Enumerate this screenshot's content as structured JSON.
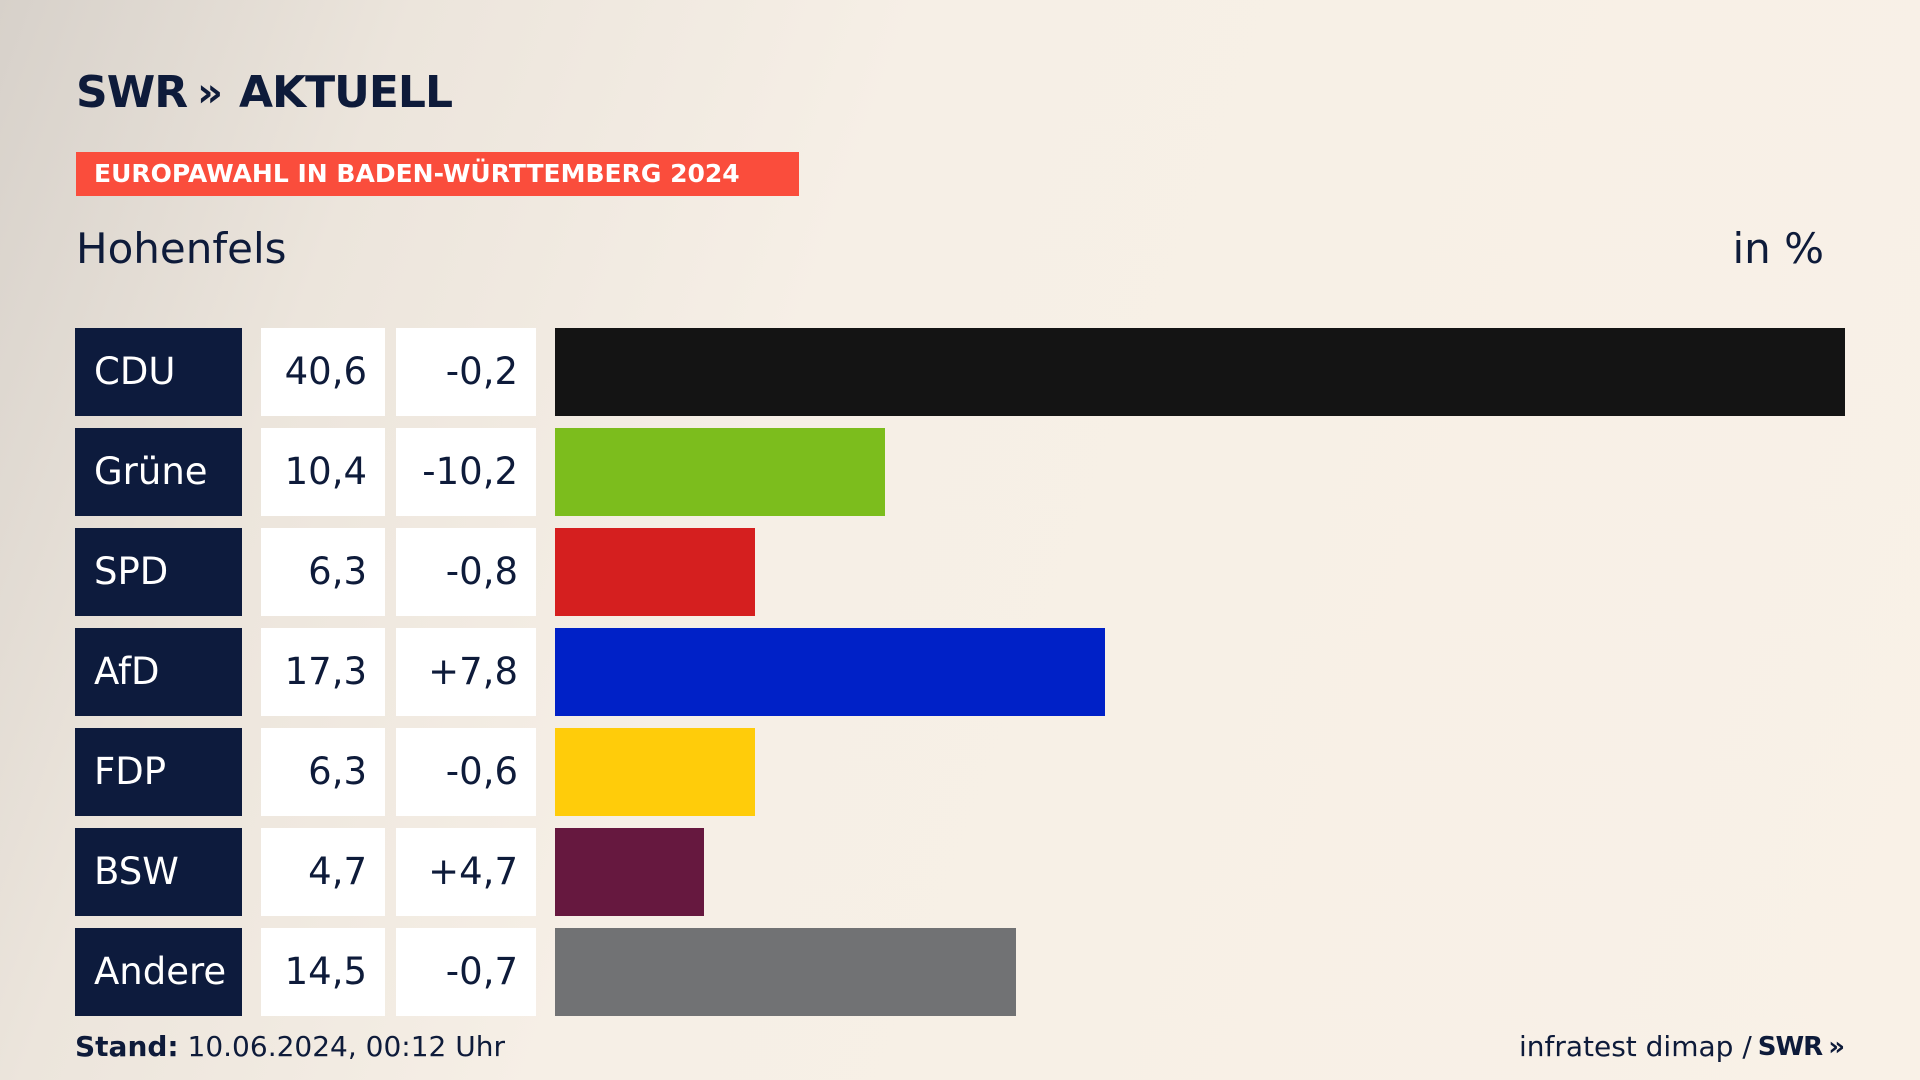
{
  "header": {
    "logo_text": "SWR",
    "logo_chevrons": "»",
    "logo_suffix": "AKTUELL",
    "banner": "EUROPAWAHL IN BADEN-WÜRTTEMBERG 2024",
    "region": "Hohenfels",
    "unit": "in %"
  },
  "chart_data": {
    "type": "bar",
    "orientation": "horizontal",
    "title": "",
    "xlim": [
      0,
      40.6
    ],
    "categories": [
      "CDU",
      "Grüne",
      "SPD",
      "AfD",
      "FDP",
      "BSW",
      "Andere"
    ],
    "values": [
      40.6,
      10.4,
      6.3,
      17.3,
      6.3,
      4.7,
      14.5
    ],
    "value_labels": [
      "40,6",
      "10,4",
      "6,3",
      "17,3",
      "6,3",
      "4,7",
      "14,5"
    ],
    "changes": [
      "-0,2",
      "-10,2",
      "-0,8",
      "+7,8",
      "-0,6",
      "+4,7",
      "-0,7"
    ],
    "colors": [
      "#141414",
      "#7cbd1d",
      "#d51f1f",
      "#0021c7",
      "#ffcc0a",
      "#66183f",
      "#717274"
    ]
  },
  "footer": {
    "stand_label": "Stand:",
    "stand_value": "10.06.2024, 00:12 Uhr",
    "source": "infratest dimap /",
    "source_logo": "SWR",
    "source_chevrons": "»"
  }
}
